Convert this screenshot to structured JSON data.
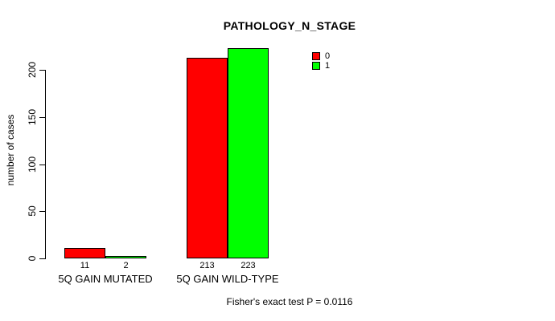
{
  "chart_data": {
    "type": "bar",
    "title": "PATHOLOGY_N_STAGE",
    "xlabel": "",
    "ylabel": "number of cases",
    "categories": [
      "5Q GAIN MUTATED",
      "5Q GAIN WILD-TYPE"
    ],
    "series": [
      {
        "name": "0",
        "color": "#ff0000",
        "values": [
          11,
          213
        ]
      },
      {
        "name": "1",
        "color": "#00ff00",
        "values": [
          2,
          223
        ]
      }
    ],
    "yticks": [
      0,
      50,
      100,
      150,
      200
    ],
    "ylim": [
      0,
      235
    ],
    "grid": false,
    "bar_borders": true,
    "legend_position": "top-right",
    "annotation": "Fisher's exact test P = 0.0116"
  }
}
